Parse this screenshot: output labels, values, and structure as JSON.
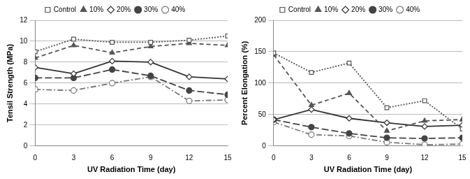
{
  "chart_data": [
    {
      "type": "line",
      "y_label": "Tensil Strength (MPa)",
      "x_label": "UV Radiation Time (day)",
      "x": [
        0,
        3,
        6,
        9,
        12,
        15
      ],
      "xlim": [
        0,
        15
      ],
      "xticks": [
        0,
        3,
        6,
        9,
        12,
        15
      ],
      "ylim": [
        0,
        12
      ],
      "yticks": [
        0,
        2,
        4,
        6,
        8,
        10,
        12
      ],
      "grid": true,
      "legend": "top",
      "series": [
        {
          "name": "Control",
          "color": "#555555",
          "marker": "square-open",
          "line_style": "dotted",
          "values": [
            9.0,
            10.2,
            9.9,
            9.9,
            10.1,
            10.5
          ]
        },
        {
          "name": "10%",
          "color": "#555555",
          "marker": "triangle",
          "line_style": "dashed",
          "values": [
            8.4,
            9.6,
            8.9,
            9.5,
            9.8,
            9.6
          ]
        },
        {
          "name": "20%",
          "color": "#333333",
          "marker": "diamond-open",
          "line_style": "solid",
          "values": [
            7.5,
            6.9,
            8.1,
            8.0,
            6.6,
            6.4
          ]
        },
        {
          "name": "30%",
          "color": "#444444",
          "marker": "circle",
          "line_style": "long-dashed",
          "values": [
            6.5,
            6.5,
            7.3,
            6.7,
            5.3,
            4.9
          ]
        },
        {
          "name": "40%",
          "color": "#777777",
          "marker": "circle-open",
          "line_style": "dash-dot",
          "values": [
            5.4,
            5.3,
            6.0,
            6.6,
            4.3,
            4.4
          ]
        }
      ]
    },
    {
      "type": "line",
      "y_label": "Percent Elongation (%)",
      "x_label": "UV Radiation Time (day)",
      "x": [
        0,
        3,
        6,
        9,
        12,
        15
      ],
      "xlim": [
        0,
        15
      ],
      "xticks": [
        0,
        3,
        6,
        9,
        12,
        15
      ],
      "ylim": [
        0,
        200
      ],
      "yticks": [
        0,
        50,
        100,
        150,
        200
      ],
      "grid": true,
      "legend": "top",
      "series": [
        {
          "name": "Control",
          "color": "#555555",
          "marker": "square-open",
          "line_style": "dotted",
          "values": [
            148,
            117,
            132,
            61,
            72,
            27
          ]
        },
        {
          "name": "10%",
          "color": "#555555",
          "marker": "triangle",
          "line_style": "dashed",
          "values": [
            145,
            65,
            84,
            24,
            40,
            42
          ]
        },
        {
          "name": "20%",
          "color": "#333333",
          "marker": "diamond-open",
          "line_style": "solid",
          "values": [
            42,
            58,
            44,
            37,
            31,
            33
          ]
        },
        {
          "name": "30%",
          "color": "#444444",
          "marker": "circle",
          "line_style": "long-dashed",
          "values": [
            42,
            30,
            20,
            13,
            12,
            13
          ]
        },
        {
          "name": "40%",
          "color": "#777777",
          "marker": "circle-open",
          "line_style": "dash-dot",
          "values": [
            38,
            18,
            16,
            6,
            2,
            3
          ]
        }
      ]
    }
  ]
}
